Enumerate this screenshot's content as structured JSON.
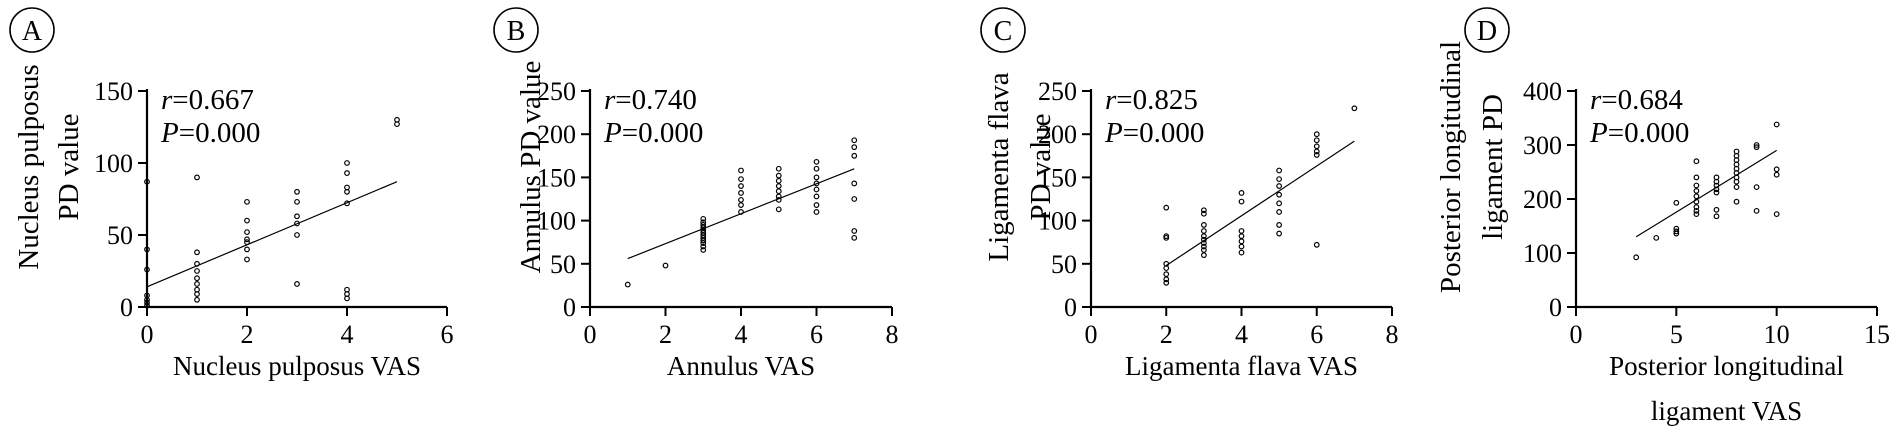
{
  "chart_data": [
    {
      "type": "scatter",
      "panel_label": "A",
      "xlabel": [
        "Nucleus pulposus VAS"
      ],
      "ylabel": [
        "Nucleus pulposus",
        "PD value"
      ],
      "xlim": [
        0,
        6
      ],
      "ylim": [
        0,
        150
      ],
      "xticks": [
        0,
        2,
        4,
        6
      ],
      "yticks": [
        0,
        50,
        100,
        150
      ],
      "stats": {
        "r_symbol": "r",
        "r_value": "=0.667",
        "p_symbol": "P",
        "p_value": "=0.000"
      },
      "fit_line": {
        "x": [
          0,
          5
        ],
        "y": [
          14,
          87
        ]
      },
      "points": [
        [
          0,
          87
        ],
        [
          0,
          40
        ],
        [
          0,
          26
        ],
        [
          0,
          8
        ],
        [
          0,
          5
        ],
        [
          0,
          3
        ],
        [
          0,
          1
        ],
        [
          1,
          90
        ],
        [
          1,
          38
        ],
        [
          1,
          30
        ],
        [
          1,
          25
        ],
        [
          1,
          20
        ],
        [
          1,
          16
        ],
        [
          1,
          12
        ],
        [
          1,
          9
        ],
        [
          1,
          5
        ],
        [
          2,
          73
        ],
        [
          2,
          60
        ],
        [
          2,
          52
        ],
        [
          2,
          47
        ],
        [
          2,
          45
        ],
        [
          2,
          40
        ],
        [
          2,
          33
        ],
        [
          3,
          80
        ],
        [
          3,
          73
        ],
        [
          3,
          63
        ],
        [
          3,
          58
        ],
        [
          3,
          50
        ],
        [
          3,
          16
        ],
        [
          4,
          100
        ],
        [
          4,
          93
        ],
        [
          4,
          83
        ],
        [
          4,
          80
        ],
        [
          4,
          72
        ],
        [
          4,
          12
        ],
        [
          4,
          9
        ],
        [
          4,
          6
        ],
        [
          5,
          130
        ],
        [
          5,
          127
        ]
      ]
    },
    {
      "type": "scatter",
      "panel_label": "B",
      "xlabel": [
        "Annulus VAS"
      ],
      "ylabel": [
        "Annulus PD value"
      ],
      "xlim": [
        0,
        8
      ],
      "ylim": [
        0,
        250
      ],
      "xticks": [
        0,
        2,
        4,
        6,
        8
      ],
      "yticks": [
        0,
        50,
        100,
        150,
        200,
        250
      ],
      "stats": {
        "r_symbol": "r",
        "r_value": "=0.740",
        "p_symbol": "P",
        "p_value": "=0.000"
      },
      "fit_line": {
        "x": [
          1,
          7
        ],
        "y": [
          56,
          160
        ]
      },
      "points": [
        [
          1,
          26
        ],
        [
          2,
          48
        ],
        [
          3,
          102
        ],
        [
          3,
          98
        ],
        [
          3,
          95
        ],
        [
          3,
          92
        ],
        [
          3,
          89
        ],
        [
          3,
          86
        ],
        [
          3,
          83
        ],
        [
          3,
          80
        ],
        [
          3,
          77
        ],
        [
          3,
          74
        ],
        [
          3,
          70
        ],
        [
          3,
          66
        ],
        [
          4,
          158
        ],
        [
          4,
          148
        ],
        [
          4,
          140
        ],
        [
          4,
          132
        ],
        [
          4,
          124
        ],
        [
          4,
          118
        ],
        [
          4,
          110
        ],
        [
          5,
          160
        ],
        [
          5,
          152
        ],
        [
          5,
          146
        ],
        [
          5,
          140
        ],
        [
          5,
          134
        ],
        [
          5,
          128
        ],
        [
          5,
          124
        ],
        [
          5,
          113
        ],
        [
          6,
          168
        ],
        [
          6,
          160
        ],
        [
          6,
          150
        ],
        [
          6,
          143
        ],
        [
          6,
          136
        ],
        [
          6,
          128
        ],
        [
          6,
          118
        ],
        [
          6,
          110
        ],
        [
          7,
          193
        ],
        [
          7,
          185
        ],
        [
          7,
          175
        ],
        [
          7,
          143
        ],
        [
          7,
          125
        ],
        [
          7,
          88
        ],
        [
          7,
          80
        ]
      ]
    },
    {
      "type": "scatter",
      "panel_label": "C",
      "xlabel": [
        "Ligamenta flava VAS"
      ],
      "ylabel": [
        "Ligamenta flava",
        "PD value"
      ],
      "xlim": [
        0,
        8
      ],
      "ylim": [
        0,
        250
      ],
      "xticks": [
        0,
        2,
        4,
        6,
        8
      ],
      "yticks": [
        0,
        50,
        100,
        150,
        200,
        250
      ],
      "stats": {
        "r_symbol": "r",
        "r_value": "=0.825",
        "p_symbol": "P",
        "p_value": "=0.000"
      },
      "fit_line": {
        "x": [
          2,
          7
        ],
        "y": [
          48,
          192
        ]
      },
      "points": [
        [
          2,
          115
        ],
        [
          2,
          82
        ],
        [
          2,
          80
        ],
        [
          2,
          50
        ],
        [
          2,
          45
        ],
        [
          2,
          38
        ],
        [
          2,
          32
        ],
        [
          2,
          28
        ],
        [
          3,
          112
        ],
        [
          3,
          108
        ],
        [
          3,
          95
        ],
        [
          3,
          88
        ],
        [
          3,
          82
        ],
        [
          3,
          78
        ],
        [
          3,
          74
        ],
        [
          3,
          70
        ],
        [
          3,
          66
        ],
        [
          3,
          60
        ],
        [
          4,
          132
        ],
        [
          4,
          122
        ],
        [
          4,
          88
        ],
        [
          4,
          82
        ],
        [
          4,
          76
        ],
        [
          4,
          70
        ],
        [
          4,
          63
        ],
        [
          5,
          158
        ],
        [
          5,
          148
        ],
        [
          5,
          140
        ],
        [
          5,
          130
        ],
        [
          5,
          120
        ],
        [
          5,
          110
        ],
        [
          5,
          95
        ],
        [
          5,
          85
        ],
        [
          6,
          200
        ],
        [
          6,
          193
        ],
        [
          6,
          186
        ],
        [
          6,
          180
        ],
        [
          6,
          176
        ],
        [
          6,
          72
        ],
        [
          7,
          230
        ]
      ]
    },
    {
      "type": "scatter",
      "panel_label": "D",
      "xlabel": [
        "Posterior longitudinal",
        "ligament VAS"
      ],
      "ylabel": [
        "Posterior longitudinal",
        "ligament PD"
      ],
      "xlim": [
        0,
        15
      ],
      "ylim": [
        0,
        400
      ],
      "xticks": [
        0,
        5,
        10,
        15
      ],
      "yticks": [
        0,
        100,
        200,
        300,
        400
      ],
      "stats": {
        "r_symbol": "r",
        "r_value": "=0.684",
        "p_symbol": "P",
        "p_value": "=0.000"
      },
      "fit_line": {
        "x": [
          3,
          10
        ],
        "y": [
          130,
          290
        ]
      },
      "points": [
        [
          3,
          92
        ],
        [
          4,
          128
        ],
        [
          5,
          193
        ],
        [
          5,
          145
        ],
        [
          5,
          140
        ],
        [
          5,
          136
        ],
        [
          6,
          270
        ],
        [
          6,
          240
        ],
        [
          6,
          225
        ],
        [
          6,
          215
        ],
        [
          6,
          205
        ],
        [
          6,
          195
        ],
        [
          6,
          185
        ],
        [
          6,
          178
        ],
        [
          6,
          172
        ],
        [
          7,
          240
        ],
        [
          7,
          232
        ],
        [
          7,
          225
        ],
        [
          7,
          218
        ],
        [
          7,
          212
        ],
        [
          7,
          180
        ],
        [
          7,
          168
        ],
        [
          8,
          288
        ],
        [
          8,
          280
        ],
        [
          8,
          272
        ],
        [
          8,
          264
        ],
        [
          8,
          256
        ],
        [
          8,
          248
        ],
        [
          8,
          240
        ],
        [
          8,
          232
        ],
        [
          8,
          222
        ],
        [
          8,
          195
        ],
        [
          9,
          300
        ],
        [
          9,
          296
        ],
        [
          9,
          222
        ],
        [
          9,
          178
        ],
        [
          10,
          338
        ],
        [
          10,
          255
        ],
        [
          10,
          245
        ],
        [
          10,
          172
        ]
      ]
    }
  ]
}
